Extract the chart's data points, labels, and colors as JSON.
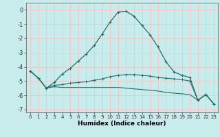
{
  "xlabel": "Humidex (Indice chaleur)",
  "bg_color": "#c8ecec",
  "grid_color": "#f0c8c8",
  "line_color": "#266b6b",
  "x_values": [
    0,
    1,
    2,
    3,
    4,
    5,
    6,
    7,
    8,
    9,
    10,
    11,
    12,
    13,
    14,
    15,
    16,
    17,
    18,
    19,
    20,
    21,
    22,
    23
  ],
  "series1": [
    -4.3,
    -4.8,
    -5.5,
    -5.1,
    -4.5,
    -4.1,
    -3.6,
    -3.1,
    -2.5,
    -1.7,
    -0.85,
    -0.15,
    -0.1,
    -0.45,
    -1.1,
    -1.75,
    -2.6,
    -3.65,
    -4.35,
    -4.6,
    -4.75,
    -6.35,
    -5.95,
    -6.6
  ],
  "series2": [
    -4.3,
    -4.8,
    -5.5,
    -5.3,
    -5.25,
    -5.15,
    -5.1,
    -5.05,
    -4.95,
    -4.85,
    -4.7,
    -4.6,
    -4.55,
    -4.55,
    -4.6,
    -4.65,
    -4.75,
    -4.8,
    -4.85,
    -4.9,
    -5.0,
    -6.35,
    -5.95,
    -6.6
  ],
  "series3": [
    -4.3,
    -4.8,
    -5.5,
    -5.4,
    -5.45,
    -5.45,
    -5.45,
    -5.45,
    -5.45,
    -5.45,
    -5.45,
    -5.45,
    -5.5,
    -5.55,
    -5.6,
    -5.65,
    -5.7,
    -5.8,
    -5.85,
    -5.9,
    -5.95,
    -6.35,
    -5.95,
    -6.6
  ],
  "ylim": [
    -7.2,
    0.5
  ],
  "xlim": [
    -0.5,
    23.5
  ],
  "yticks": [
    0,
    -1,
    -2,
    -3,
    -4,
    -5,
    -6,
    -7
  ],
  "xticks": [
    0,
    1,
    2,
    3,
    4,
    5,
    6,
    7,
    8,
    9,
    10,
    11,
    12,
    13,
    14,
    15,
    16,
    17,
    18,
    19,
    20,
    21,
    22,
    23
  ]
}
